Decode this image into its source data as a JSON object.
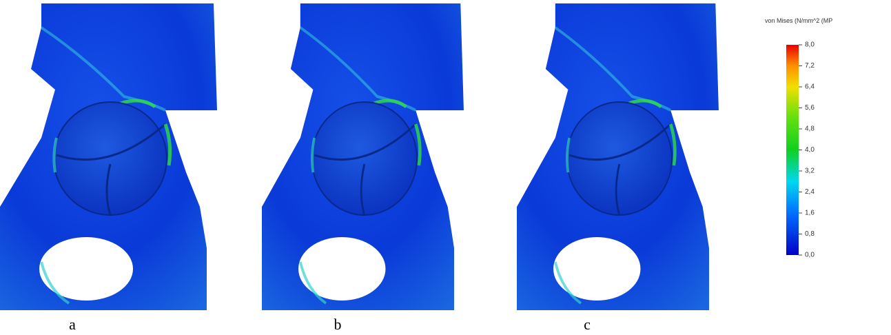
{
  "panels": [
    {
      "label": "a"
    },
    {
      "label": "b"
    },
    {
      "label": "c"
    }
  ],
  "colorbar": {
    "title": "von Mises (N/mm^2 (MP",
    "ticks": [
      {
        "value": 8,
        "label": "8,0"
      },
      {
        "value": 7.2,
        "label": "7,2"
      },
      {
        "value": 6.4,
        "label": "6,4"
      },
      {
        "value": 5.6,
        "label": "5,6"
      },
      {
        "value": 4.8,
        "label": "4,8"
      },
      {
        "value": 4,
        "label": "4,0"
      },
      {
        "value": 3.2,
        "label": "3,2"
      },
      {
        "value": 2.4,
        "label": "2,4"
      },
      {
        "value": 1.6,
        "label": "1,6"
      },
      {
        "value": 0.8,
        "label": "0,8"
      },
      {
        "value": 0,
        "label": "0,0"
      }
    ]
  }
}
